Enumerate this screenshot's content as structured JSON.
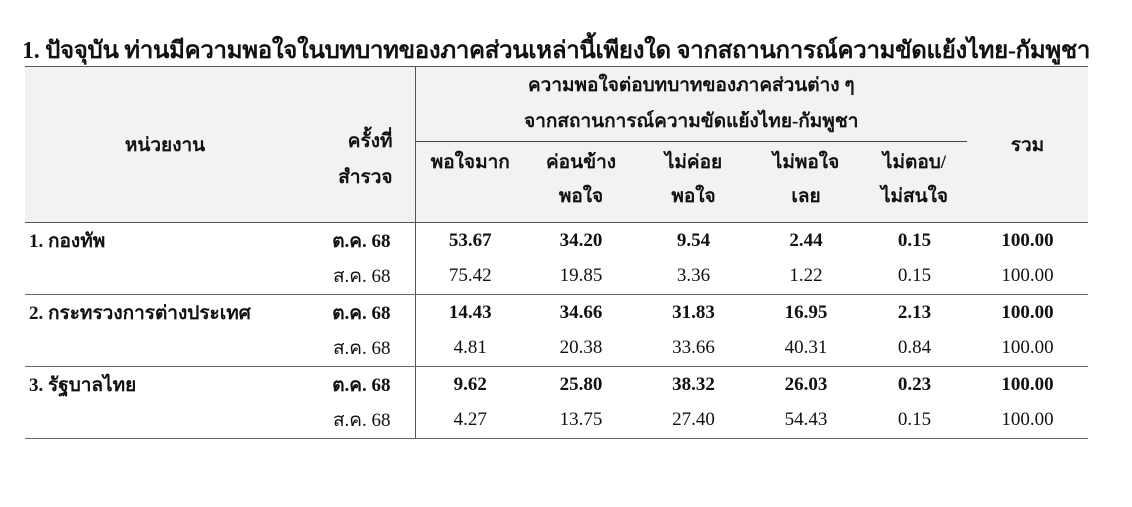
{
  "title": "1. ปัจจุบัน ท่านมีความพอใจในบทบาทของภาคส่วนเหล่านี้เพียงใด จากสถานการณ์ความขัดแย้งไทย-กัมพูชา",
  "headers": {
    "agency": "หน่วยงาน",
    "round_line1": "ครั้งที่",
    "round_line2": "สำรวจ",
    "group_line1": "ความพอใจต่อบทบาทของภาคส่วนต่าง ๆ",
    "group_line2": "จากสถานการณ์ความขัดแย้งไทย-กัมพูชา",
    "total": "รวม",
    "cols": [
      {
        "l1": "พอใจมาก",
        "l2": ""
      },
      {
        "l1": "ค่อนข้าง",
        "l2": "พอใจ"
      },
      {
        "l1": "ไม่ค่อย",
        "l2": "พอใจ"
      },
      {
        "l1": "ไม่พอใจ",
        "l2": "เลย"
      },
      {
        "l1": "ไม่ตอบ/",
        "l2": "ไม่สนใจ"
      }
    ]
  },
  "rows": [
    {
      "agency": "1. กองทัพ",
      "round": "ต.ค. 68",
      "v": [
        "53.67",
        "34.20",
        "9.54",
        "2.44",
        "0.15",
        "100.00"
      ]
    },
    {
      "agency": "",
      "round": "ส.ค. 68",
      "v": [
        "75.42",
        "19.85",
        "3.36",
        "1.22",
        "0.15",
        "100.00"
      ]
    },
    {
      "agency": "2. กระทรวงการต่างประเทศ",
      "round": "ต.ค. 68",
      "v": [
        "14.43",
        "34.66",
        "31.83",
        "16.95",
        "2.13",
        "100.00"
      ]
    },
    {
      "agency": "",
      "round": "ส.ค. 68",
      "v": [
        "4.81",
        "20.38",
        "33.66",
        "40.31",
        "0.84",
        "100.00"
      ]
    },
    {
      "agency": "3. รัฐบาลไทย",
      "round": "ต.ค. 68",
      "v": [
        "9.62",
        "25.80",
        "38.32",
        "26.03",
        "0.23",
        "100.00"
      ]
    },
    {
      "agency": "",
      "round": "ส.ค. 68",
      "v": [
        "4.27",
        "13.75",
        "27.40",
        "54.43",
        "0.15",
        "100.00"
      ]
    }
  ]
}
